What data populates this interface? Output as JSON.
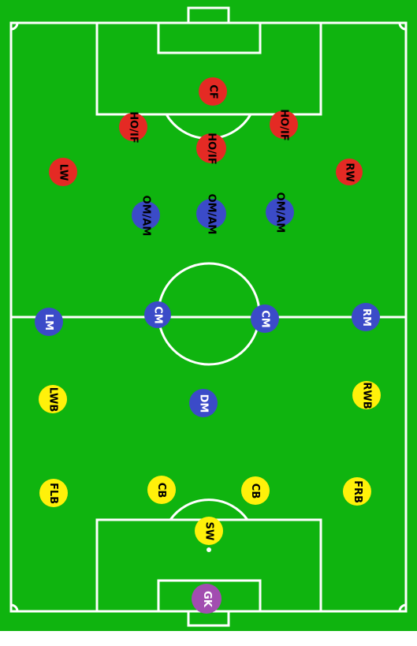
{
  "colors": {
    "grass": "#0fb40f",
    "lines": "#ffffff",
    "attacker": "#e42a24",
    "midfielder": "#3b4bc8",
    "defender": "#fff10a",
    "goalkeeper": "#a24db0"
  },
  "players": [
    {
      "id": "cf",
      "label": "CF",
      "role": "attacker",
      "text_color": "#000000"
    },
    {
      "id": "hoif-l",
      "label": "HO/IF",
      "role": "attacker",
      "text_color": "#000000"
    },
    {
      "id": "hoif-c",
      "label": "HO/IF",
      "role": "attacker",
      "text_color": "#000000"
    },
    {
      "id": "hoif-r",
      "label": "HO/IF",
      "role": "attacker",
      "text_color": "#000000"
    },
    {
      "id": "lw",
      "label": "LW",
      "role": "attacker",
      "text_color": "#000000"
    },
    {
      "id": "rw",
      "label": "RW",
      "role": "attacker",
      "text_color": "#000000"
    },
    {
      "id": "omam-l",
      "label": "OM/AM",
      "role": "midfielder",
      "text_color": "#000000"
    },
    {
      "id": "omam-c",
      "label": "OM/AM",
      "role": "midfielder",
      "text_color": "#000000"
    },
    {
      "id": "omam-r",
      "label": "OM/AM",
      "role": "midfielder",
      "text_color": "#000000"
    },
    {
      "id": "lm",
      "label": "LM",
      "role": "midfielder",
      "text_color": "#ffffff"
    },
    {
      "id": "cm-l",
      "label": "CM",
      "role": "midfielder",
      "text_color": "#ffffff"
    },
    {
      "id": "cm-r",
      "label": "CM",
      "role": "midfielder",
      "text_color": "#ffffff"
    },
    {
      "id": "rm",
      "label": "RM",
      "role": "midfielder",
      "text_color": "#ffffff"
    },
    {
      "id": "dm",
      "label": "DM",
      "role": "midfielder",
      "text_color": "#ffffff"
    },
    {
      "id": "lwb",
      "label": "LWB",
      "role": "defender",
      "text_color": "#000000"
    },
    {
      "id": "rwb",
      "label": "RWB",
      "role": "defender",
      "text_color": "#000000"
    },
    {
      "id": "flb",
      "label": "FLB",
      "role": "defender",
      "text_color": "#000000"
    },
    {
      "id": "cb-l",
      "label": "CB",
      "role": "defender",
      "text_color": "#000000"
    },
    {
      "id": "cb-r",
      "label": "CB",
      "role": "defender",
      "text_color": "#000000"
    },
    {
      "id": "frb",
      "label": "FRB",
      "role": "defender",
      "text_color": "#000000"
    },
    {
      "id": "sw",
      "label": "SW",
      "role": "defender",
      "text_color": "#000000"
    },
    {
      "id": "gk",
      "label": "GK",
      "role": "goalkeeper",
      "text_color": "#ffffff"
    }
  ]
}
